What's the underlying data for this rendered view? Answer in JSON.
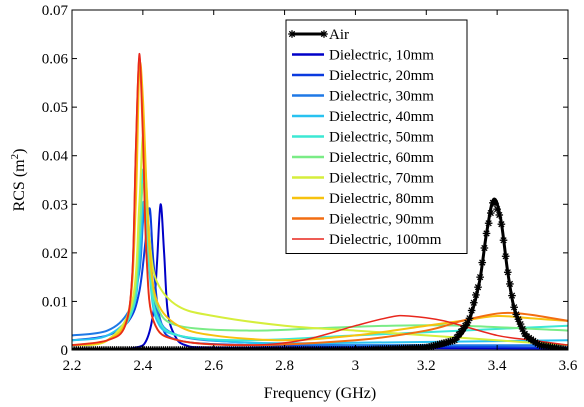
{
  "chart_data": {
    "type": "line",
    "xlabel": "Frequency (GHz)",
    "ylabel": "RCS (m",
    "ylabel_sup": "2",
    "ylabel_close": ")",
    "xlim": [
      2.2,
      3.6
    ],
    "ylim": [
      0,
      0.07
    ],
    "x_ticks": [
      "2.2",
      "2.4",
      "2.6",
      "2.8",
      "3",
      "3.2",
      "3.4",
      "3.6"
    ],
    "y_ticks": [
      "0",
      "0.01",
      "0.02",
      "0.03",
      "0.04",
      "0.05",
      "0.06",
      "0.07"
    ],
    "grid": false,
    "legend_position": "top-right",
    "series": [
      {
        "name": "Air",
        "color": "#000000",
        "marker": "star",
        "x": [
          2.2,
          2.6,
          3.0,
          3.2,
          3.28,
          3.32,
          3.35,
          3.37,
          3.39,
          3.41,
          3.43,
          3.45,
          3.48,
          3.52,
          3.6
        ],
        "y": [
          0.0,
          0.0,
          0.0,
          0.0005,
          0.002,
          0.006,
          0.014,
          0.024,
          0.031,
          0.027,
          0.016,
          0.008,
          0.003,
          0.001,
          0.0
        ]
      },
      {
        "name": "Dielectric, 10mm",
        "color": "#0000c8",
        "x": [
          2.2,
          2.3,
          2.38,
          2.41,
          2.43,
          2.44,
          2.45,
          2.46,
          2.47,
          2.49,
          2.52,
          2.6,
          3.0,
          3.6
        ],
        "y": [
          0.0,
          0.0,
          0.0005,
          0.002,
          0.008,
          0.018,
          0.03,
          0.02,
          0.008,
          0.003,
          0.001,
          0.0005,
          0.0004,
          0.0003
        ]
      },
      {
        "name": "Dielectric, 20mm",
        "color": "#0a3adf",
        "x": [
          2.2,
          2.3,
          2.36,
          2.39,
          2.41,
          2.42,
          2.43,
          2.45,
          2.5,
          2.7,
          3.0,
          3.6
        ],
        "y": [
          0.002,
          0.003,
          0.006,
          0.012,
          0.024,
          0.029,
          0.018,
          0.006,
          0.002,
          0.001,
          0.0008,
          0.0005
        ]
      },
      {
        "name": "Dielectric, 30mm",
        "color": "#1f78e6",
        "x": [
          2.2,
          2.3,
          2.36,
          2.39,
          2.4,
          2.41,
          2.42,
          2.44,
          2.5,
          2.7,
          3.0,
          3.6
        ],
        "y": [
          0.003,
          0.004,
          0.008,
          0.016,
          0.026,
          0.032,
          0.022,
          0.008,
          0.003,
          0.0015,
          0.001,
          0.001
        ]
      },
      {
        "name": "Dielectric, 40mm",
        "color": "#28c2f0",
        "x": [
          2.2,
          2.3,
          2.37,
          2.39,
          2.4,
          2.41,
          2.42,
          2.44,
          2.5,
          2.7,
          3.0,
          3.6
        ],
        "y": [
          0.002,
          0.003,
          0.008,
          0.018,
          0.03,
          0.027,
          0.015,
          0.006,
          0.003,
          0.0015,
          0.0015,
          0.002
        ]
      },
      {
        "name": "Dielectric, 50mm",
        "color": "#3ce8d4",
        "x": [
          2.2,
          2.3,
          2.37,
          2.39,
          2.4,
          2.41,
          2.42,
          2.44,
          2.5,
          2.7,
          3.0,
          3.3,
          3.6
        ],
        "y": [
          0.001,
          0.002,
          0.008,
          0.022,
          0.037,
          0.03,
          0.016,
          0.007,
          0.003,
          0.002,
          0.003,
          0.004,
          0.005
        ]
      },
      {
        "name": "Dielectric, 60mm",
        "color": "#7aec86",
        "x": [
          2.2,
          2.3,
          2.37,
          2.39,
          2.4,
          2.41,
          2.42,
          2.44,
          2.5,
          2.7,
          2.9,
          3.1,
          3.3,
          3.6
        ],
        "y": [
          0.001,
          0.002,
          0.009,
          0.024,
          0.034,
          0.03,
          0.018,
          0.009,
          0.005,
          0.004,
          0.0045,
          0.005,
          0.005,
          0.004
        ]
      },
      {
        "name": "Dielectric, 70mm",
        "color": "#d6ee3c",
        "x": [
          2.2,
          2.3,
          2.37,
          2.39,
          2.4,
          2.41,
          2.42,
          2.44,
          2.5,
          2.6,
          2.8,
          3.0,
          3.2,
          3.4,
          3.6
        ],
        "y": [
          0.001,
          0.002,
          0.01,
          0.03,
          0.044,
          0.034,
          0.022,
          0.014,
          0.009,
          0.007,
          0.005,
          0.004,
          0.003,
          0.002,
          0.001
        ]
      },
      {
        "name": "Dielectric, 80mm",
        "color": "#f7c20f",
        "x": [
          2.2,
          2.3,
          2.36,
          2.38,
          2.39,
          2.4,
          2.41,
          2.42,
          2.44,
          2.5,
          2.6,
          2.8,
          3.0,
          3.2,
          3.3,
          3.4,
          3.5,
          3.6
        ],
        "y": [
          0.001,
          0.002,
          0.008,
          0.03,
          0.058,
          0.052,
          0.034,
          0.02,
          0.01,
          0.005,
          0.003,
          0.002,
          0.003,
          0.005,
          0.006,
          0.007,
          0.0065,
          0.006
        ]
      },
      {
        "name": "Dielectric, 90mm",
        "color": "#f26d12",
        "x": [
          2.2,
          2.3,
          2.35,
          2.37,
          2.38,
          2.39,
          2.4,
          2.41,
          2.43,
          2.5,
          2.7,
          3.0,
          3.2,
          3.3,
          3.4,
          3.45,
          3.5,
          3.6
        ],
        "y": [
          0.001,
          0.002,
          0.005,
          0.015,
          0.04,
          0.06,
          0.044,
          0.02,
          0.006,
          0.002,
          0.001,
          0.002,
          0.004,
          0.006,
          0.0075,
          0.0076,
          0.0072,
          0.006
        ]
      },
      {
        "name": "Dielectric, 100mm",
        "color": "#e8271d",
        "x": [
          2.2,
          2.3,
          2.35,
          2.37,
          2.38,
          2.39,
          2.4,
          2.41,
          2.43,
          2.5,
          2.7,
          2.85,
          3.0,
          3.1,
          3.15,
          3.25,
          3.4,
          3.5,
          3.6
        ],
        "y": [
          0.001,
          0.002,
          0.005,
          0.016,
          0.042,
          0.061,
          0.045,
          0.02,
          0.006,
          0.002,
          0.001,
          0.002,
          0.005,
          0.0068,
          0.007,
          0.006,
          0.003,
          0.002,
          0.001
        ]
      }
    ]
  }
}
